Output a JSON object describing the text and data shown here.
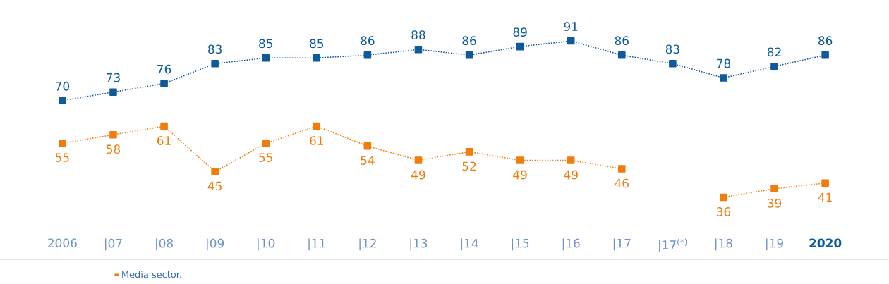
{
  "chart_data": {
    "type": "line",
    "categories": [
      "2006",
      "|07",
      "|08",
      "|09",
      "|10",
      "|11",
      "|12",
      "|13",
      "|14",
      "|15",
      "|16",
      "|17",
      "|17$^{(*)}$",
      "|18",
      "|19",
      "2020"
    ],
    "series": [
      {
        "color": "#0f5a9b",
        "values": [
          70,
          73,
          76,
          83,
          85,
          85,
          86,
          88,
          86,
          89,
          91,
          86,
          83,
          78,
          82,
          86
        ]
      },
      {
        "name": "Media sector.",
        "color": "#f07c0b",
        "values": [
          55,
          58,
          61,
          45,
          55,
          61,
          54,
          49,
          52,
          49,
          49,
          46,
          null,
          36,
          39,
          41
        ]
      }
    ],
    "data_labels": true,
    "marker": "square",
    "line_style": "dotted",
    "legend": "bottom left",
    "grid": false
  }
}
